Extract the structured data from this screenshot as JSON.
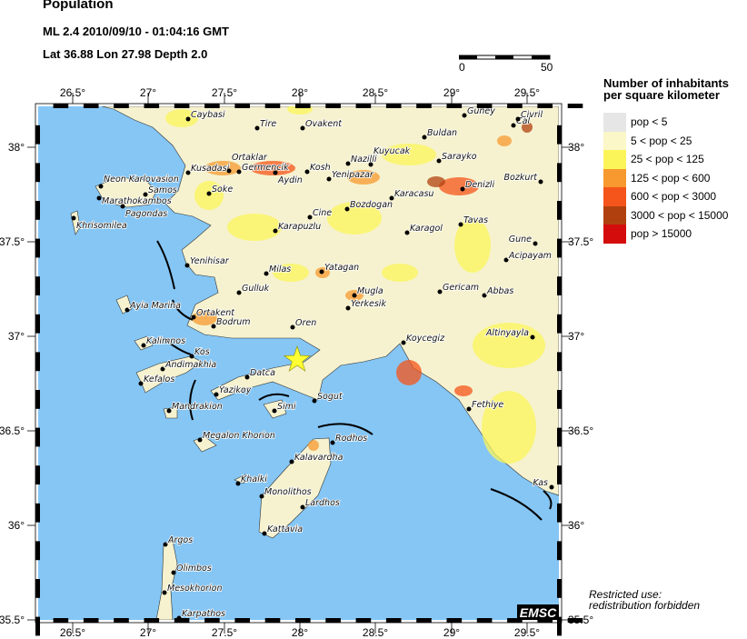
{
  "header": {
    "title": "Population",
    "event_line": "ML 2.4  2010/09/10 - 01:04:16 GMT",
    "location_line": "Lat 36.88    Lon  27.98    Depth  2.0"
  },
  "event": {
    "magnitude_type": "ML",
    "magnitude": 2.4,
    "date": "2010/09/10",
    "time": "01:04:16 GMT",
    "lat": 36.88,
    "lon": 27.98,
    "depth": 2.0,
    "marker": "star-icon",
    "marker_color": "#ffff33"
  },
  "scale_bar": {
    "start_label": "0",
    "end_label": "50"
  },
  "axes": {
    "lon_ticks": [
      "26.5°",
      "27°",
      "27.5°",
      "28°",
      "28.5°",
      "29°",
      "29.5°"
    ],
    "lat_ticks": [
      "38°",
      "37.5°",
      "37°",
      "36.5°",
      "36°",
      "35.5°"
    ]
  },
  "legend": {
    "title_line1": "Number of inhabitants",
    "title_line2": "per square kilometer",
    "items": [
      {
        "label": "pop < 5",
        "color": "#e6e6e6"
      },
      {
        "label": "5 < pop < 25",
        "color": "#fbf7c8"
      },
      {
        "label": "25 < pop < 125",
        "color": "#fbf55a"
      },
      {
        "label": "125 < pop < 600",
        "color": "#f7992f"
      },
      {
        "label": "600 < pop < 3000",
        "color": "#f5541a"
      },
      {
        "label": "3000 < pop < 15000",
        "color": "#b0410f"
      },
      {
        "label": "pop > 15000",
        "color": "#d40c0c"
      }
    ]
  },
  "colors": {
    "sea": "#85c6f5",
    "land": "#f6f2cf"
  },
  "cities": [
    "Caybasi",
    "Tire",
    "Ovakent",
    "Guney",
    "Cal",
    "Buldan",
    "Nazilli",
    "Kuyucak",
    "Sarayko",
    "Kusadasi",
    "Ortaklar",
    "Germencik",
    "Aydin",
    "Kosh",
    "Yenipazar",
    "Denizli",
    "Neon Karlovasion",
    "Samos",
    "Marathokambos",
    "Pagondas",
    "Khrisomilea",
    "Soke",
    "Karacasu",
    "Bozdogan",
    "Cine",
    "Karapuzlu",
    "Karagol",
    "Tavas",
    "Yenihisar",
    "Milas",
    "Yatagan",
    "Acipayam",
    "Gulluk",
    "Mugla",
    "Gericam",
    "Abbas",
    "Ayia Marina",
    "Ortakent",
    "Bodrum",
    "Yerkesik",
    "Oren",
    "Kalimnos",
    "Kos",
    "Koycegiz",
    "Andimakhia",
    "Kefalos",
    "Datca",
    "Yazikoy",
    "Sogut",
    "Fethiye",
    "Mandrakion",
    "Simi",
    "Megalon Khorion",
    "Rodhos",
    "Kalavardha",
    "Khalki",
    "Monolithos",
    "Lardhos",
    "Kattavia",
    "Argos",
    "Olimbos",
    "Mesokhorion",
    "Karpathos",
    "Bozkurt",
    "Gune",
    "Altinyayla",
    "Kas",
    "Civril"
  ],
  "logo": "EMSC",
  "notice": {
    "line1": "Restricted use:",
    "line2": "redistribution forbidden"
  }
}
